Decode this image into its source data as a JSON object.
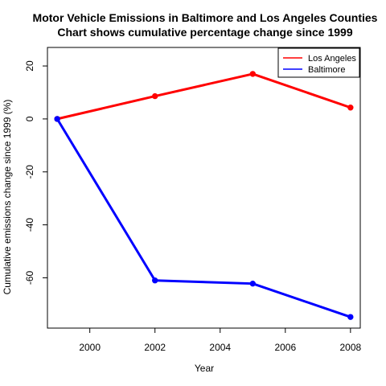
{
  "chart_data": {
    "type": "line",
    "title": "Motor Vehicle Emissions in Baltimore and Los Angeles Counties",
    "subtitle": "Chart shows cumulative percentage change since 1999",
    "xlabel": "Year",
    "ylabel": "Cumulative emissions change since 1999 (%)",
    "xlim": [
      1998.7,
      2008.3
    ],
    "ylim": [
      -79,
      27
    ],
    "xticks": [
      2000,
      2002,
      2004,
      2006,
      2008
    ],
    "yticks": [
      -60,
      -40,
      -20,
      0,
      20
    ],
    "legend_position": "top-right",
    "x": [
      1999,
      2002,
      2005,
      2008
    ],
    "series": [
      {
        "name": "Los Angeles",
        "color": "#ff0000",
        "values": [
          0,
          8.6,
          17.0,
          4.3
        ]
      },
      {
        "name": "Baltimore",
        "color": "#0000ff",
        "values": [
          0,
          -61.0,
          -62.2,
          -74.8
        ]
      }
    ]
  }
}
